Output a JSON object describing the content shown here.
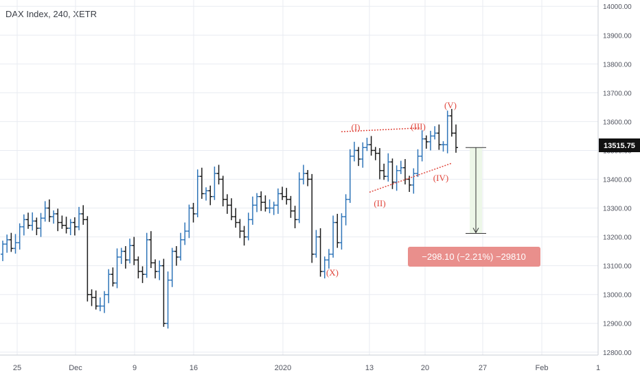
{
  "header": {
    "title": "DAX Index, 240, XETR"
  },
  "colors": {
    "up": "#2e74b8",
    "down": "#1a1a1a",
    "annotation": "#e0463c",
    "grid": "#e8ebf1",
    "axis_text": "#50535e"
  },
  "chart_data": {
    "type": "ohlc",
    "title": "DAX Index, 240, XETR",
    "y_ticks": [
      "14000.00",
      "13900.00",
      "13800.00",
      "13700.00",
      "13600.00",
      "13500.00",
      "13400.00",
      "13300.00",
      "13200.00",
      "13100.00",
      "13000.00",
      "12900.00",
      "12800.00"
    ],
    "ylim": [
      12790,
      14010
    ],
    "x_ticks": [
      "25",
      "Dec",
      "9",
      "16",
      "2020",
      "13",
      "20",
      "27",
      "Feb",
      "1"
    ],
    "last_price": "13515.75",
    "grid": true,
    "candles_close": [
      13175,
      13190,
      13160,
      13180,
      13235,
      13260,
      13240,
      13255,
      13230,
      13265,
      13300,
      13270,
      13280,
      13250,
      13240,
      13230,
      13250,
      13235,
      13280,
      13260,
      13000,
      12990,
      12960,
      12960,
      13000,
      13070,
      13040,
      13130,
      13150,
      13120,
      13170,
      13120,
      13080,
      13070,
      13190,
      13110,
      13080,
      13100,
      12900,
      13050,
      13150,
      13130,
      13190,
      13220,
      13300,
      13280,
      13410,
      13350,
      13360,
      13340,
      13420,
      13400,
      13330,
      13310,
      13270,
      13250,
      13220,
      13200,
      13260,
      13310,
      13340,
      13320,
      13300,
      13300,
      13310,
      13350,
      13340,
      13330,
      13290,
      13260,
      13400,
      13420,
      13400,
      13140,
      13200,
      13080,
      13120,
      13140,
      13250,
      13180,
      13270,
      13330,
      13480,
      13500,
      13470,
      13510,
      13520,
      13500,
      13490,
      13430,
      13410,
      13460,
      13390,
      13430,
      13440,
      13400,
      13380,
      13420,
      13480,
      13540,
      13530,
      13550,
      13560,
      13520,
      13520,
      13620,
      13560,
      13510
    ],
    "annotations": [
      "(I)",
      "(II)",
      "(III)",
      "(IV)",
      "(V)",
      "(X)"
    ],
    "measure_label": "−298.10 (−2.21%) −29810"
  }
}
